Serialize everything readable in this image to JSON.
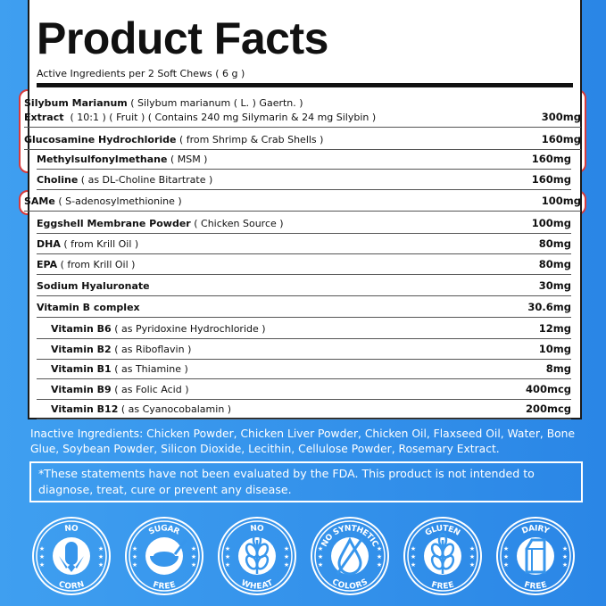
{
  "title": "Product Facts",
  "subtitle": "Active Ingredients per 2 Soft Chews ( 6 g )",
  "rows": [
    {
      "name": "Silybum Marianum",
      "detail": "( Silybum marianum ( L. ) Gaertn. )",
      "name2": "Extract",
      "detail2": "( 10:1 ) (  Fruit  ) ( Contains 240 mg Silymarin & 24 mg Silybin )",
      "amount": "300mg"
    },
    {
      "name": "Glucosamine Hydrochloride",
      "detail": "( from Shrimp & Crab Shells )",
      "amount": "160mg"
    },
    {
      "name": "Methylsulfonylmethane",
      "detail": "( MSM )",
      "amount": "160mg"
    },
    {
      "name": "Choline",
      "detail": "( as DL-Choline Bitartrate )",
      "amount": "160mg"
    },
    {
      "name": "SAMe",
      "detail": "( S-adenosylmethionine )",
      "amount": "100mg"
    },
    {
      "name": "Eggshell Membrane Powder",
      "detail": "( Chicken Source )",
      "amount": "100mg"
    },
    {
      "name": "DHA",
      "detail": "( from Krill Oil )",
      "amount": "80mg"
    },
    {
      "name": "EPA",
      "detail": "( from Krill Oil )",
      "amount": "80mg"
    },
    {
      "name": "Sodium Hyaluronate",
      "detail": "",
      "amount": "30mg"
    },
    {
      "name": "Vitamin B complex",
      "detail": "",
      "amount": "30.6mg"
    },
    {
      "name": "Vitamin B6",
      "detail": "( as Pyridoxine Hydrochloride )",
      "amount": "12mg"
    },
    {
      "name": "Vitamin B2",
      "detail": "( as Riboflavin )",
      "amount": "10mg"
    },
    {
      "name": "Vitamin B1",
      "detail": "( as Thiamine )",
      "amount": "8mg"
    },
    {
      "name": "Vitamin B9",
      "detail": "( as Folic Acid )",
      "amount": "400mcg"
    },
    {
      "name": "Vitamin B12",
      "detail": "( as Cyanocobalamin )",
      "amount": "200mcg"
    }
  ],
  "inactive": "Inactive Ingredients: Chicken Powder, Chicken Liver Powder, Chicken Oil, Flaxseed Oil, Water, Bone Glue, Soybean Powder, Silicon Dioxide, Lecithin, Cellulose Powder, Rosemary Extract.",
  "disclaimer": "*These statements have not been evaluated by the FDA. This product is not intended to diagnose, treat, cure or prevent any disease.",
  "badges": [
    {
      "top": "NO",
      "bottom": "CORN",
      "icon": "corn-icon"
    },
    {
      "top": "SUGAR",
      "bottom": "FREE",
      "icon": "bowl-icon"
    },
    {
      "top": "NO",
      "bottom": "WHEAT",
      "icon": "wheat-icon"
    },
    {
      "top": "NO SYNTHETIC",
      "bottom": "COLORS",
      "icon": "drop-icon"
    },
    {
      "top": "GLUTEN",
      "bottom": "FREE",
      "icon": "wheat-icon"
    },
    {
      "top": "DAIRY",
      "bottom": "FREE",
      "icon": "milk-carton-icon"
    }
  ],
  "colors": {
    "background": "#3796ec",
    "highlight": "#d93a3a"
  }
}
